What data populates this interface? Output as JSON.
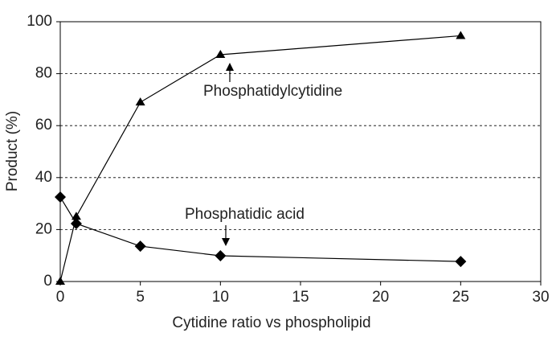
{
  "chart_data": {
    "type": "line",
    "x_label": "Cytidine ratio vs phospholipid",
    "y_label": "Product (%)",
    "series": [
      {
        "name": "Phosphatidylcytidine",
        "color": "#000000",
        "marker": "triangle",
        "x": [
          0,
          1,
          5,
          10,
          25
        ],
        "values": [
          0,
          25,
          69,
          87.3,
          94.6
        ]
      },
      {
        "name": "Phosphatidic acid",
        "color": "#000000",
        "marker": "diamond",
        "x": [
          0,
          1,
          5,
          10,
          25
        ],
        "values": [
          32.5,
          22.3,
          13.6,
          9.9,
          7.7
        ]
      }
    ],
    "xlim": [
      0,
      30
    ],
    "xticks": [
      0,
      5,
      10,
      15,
      20,
      25,
      30
    ],
    "ylim": [
      0,
      100
    ],
    "yticks": [
      0,
      20,
      40,
      60,
      80,
      100
    ],
    "grid": true
  }
}
